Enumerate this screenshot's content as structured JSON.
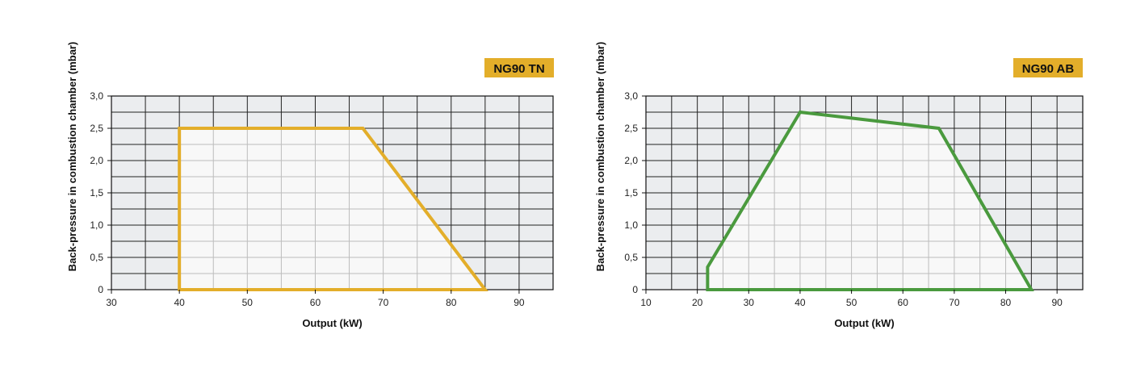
{
  "chart_data": [
    {
      "type": "area",
      "title": "NG90 TN",
      "xlabel": "Output (kW)",
      "ylabel": "Back-pressure in combustion chamber (mbar)",
      "xlim": [
        30,
        95
      ],
      "ylim": [
        0,
        3.0
      ],
      "x_ticks": [
        "30",
        "40",
        "50",
        "60",
        "70",
        "80",
        "90"
      ],
      "x_tick_values": [
        30,
        40,
        50,
        60,
        70,
        80,
        90
      ],
      "y_ticks": [
        "0",
        "0,5",
        "1,0",
        "1,5",
        "2,0",
        "2,5",
        "3,0"
      ],
      "y_tick_values": [
        0,
        0.5,
        1.0,
        1.5,
        2.0,
        2.5,
        3.0
      ],
      "grid": true,
      "series": [
        {
          "color": "#E3AE2A",
          "points": [
            [
              40,
              0
            ],
            [
              40,
              2.5
            ],
            [
              67,
              2.5
            ],
            [
              85,
              0
            ]
          ]
        }
      ]
    },
    {
      "type": "area",
      "title": "NG90 AB",
      "xlabel": "Output (kW)",
      "ylabel": "Back-pressure in combustion chamber (mbar)",
      "xlim": [
        10,
        95
      ],
      "ylim": [
        0,
        3.0
      ],
      "x_ticks": [
        "10",
        "20",
        "30",
        "40",
        "50",
        "60",
        "70",
        "80",
        "90"
      ],
      "x_tick_values": [
        10,
        20,
        30,
        40,
        50,
        60,
        70,
        80,
        90
      ],
      "y_ticks": [
        "0",
        "0,5",
        "1,0",
        "1,5",
        "2,0",
        "2,5",
        "3,0"
      ],
      "y_tick_values": [
        0,
        0.5,
        1.0,
        1.5,
        2.0,
        2.5,
        3.0
      ],
      "grid": true,
      "series": [
        {
          "color": "#4A9A3E",
          "points": [
            [
              22,
              0
            ],
            [
              22,
              0.35
            ],
            [
              40,
              2.75
            ],
            [
              67,
              2.5
            ],
            [
              85,
              0
            ]
          ]
        }
      ]
    }
  ],
  "colors": {
    "grid_background": "#EBEDEF",
    "area_fill": "#F8F8F8",
    "badge": "#E3AE2A",
    "grid_line": "#222222"
  }
}
